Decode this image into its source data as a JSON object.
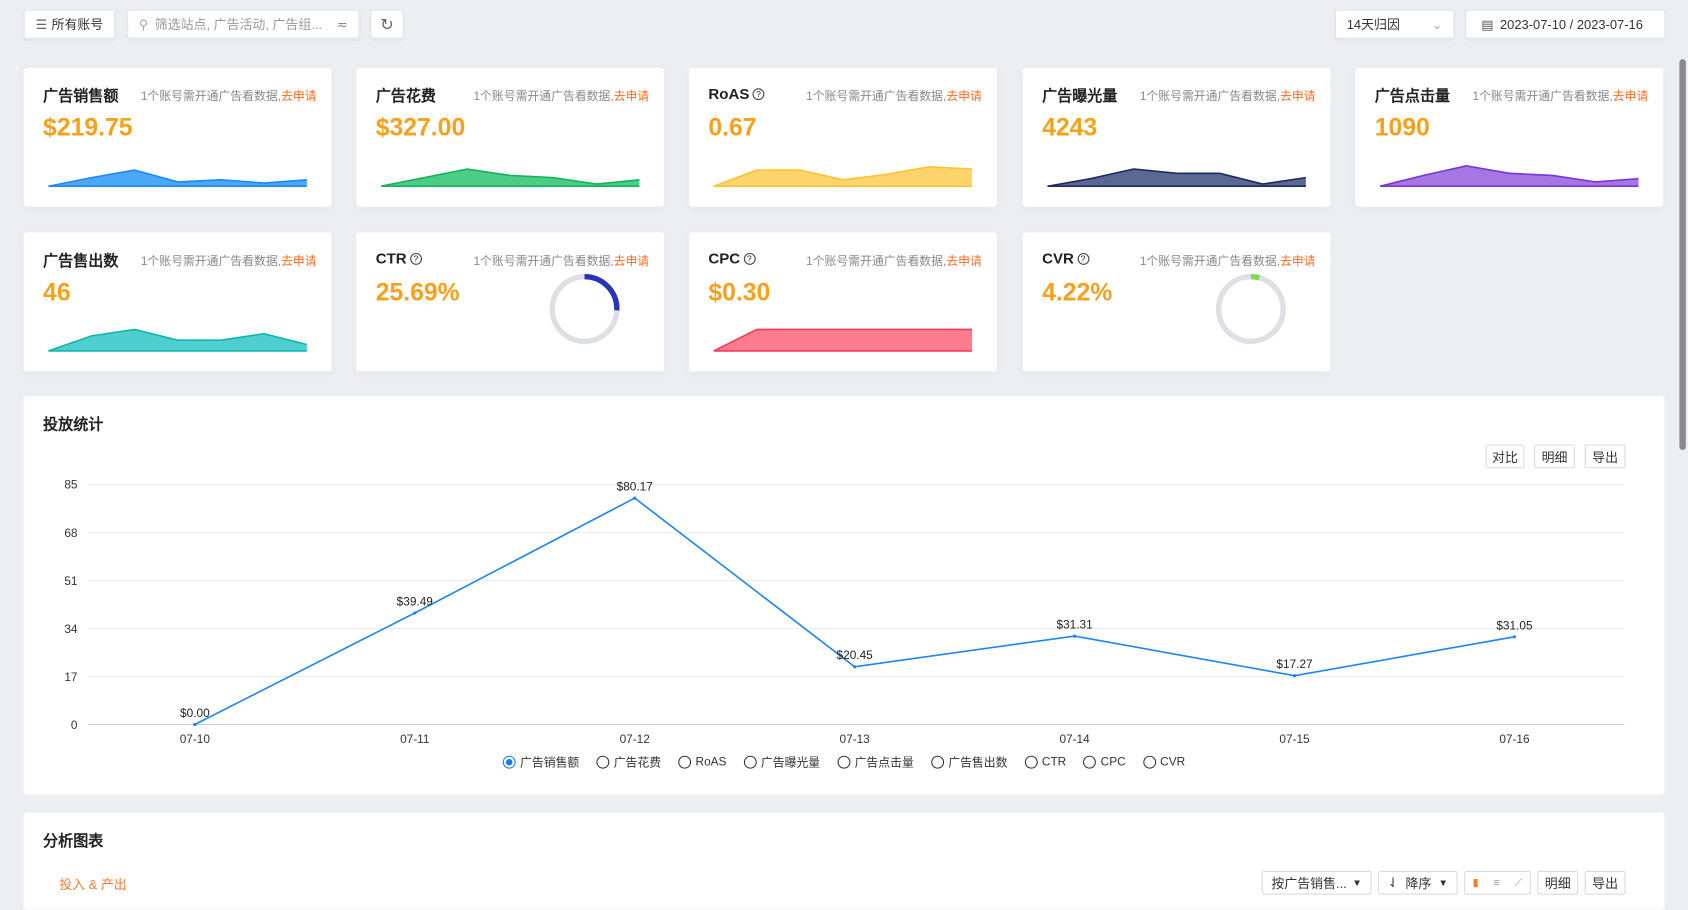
{
  "toolbar": {
    "accounts_label": "所有账号",
    "search_placeholder": "筛选站点, 广告活动, 广告组...",
    "attribution": "14天归因",
    "date_range": "2023-07-10 / 2023-07-16"
  },
  "notice": {
    "text": "1个账号需开通广告看数据,",
    "link": "去申请"
  },
  "cards": [
    {
      "title": "广告销售额",
      "value": "$219.75",
      "help": false,
      "color": "#1e88f5",
      "fill": "#4aa8f7",
      "spark": [
        0,
        8,
        15,
        4,
        6,
        3,
        6
      ]
    },
    {
      "title": "广告花费",
      "value": "$327.00",
      "help": false,
      "color": "#11b35b",
      "fill": "#4ccc85",
      "spark": [
        0,
        8,
        16,
        10,
        8,
        2,
        6
      ]
    },
    {
      "title": "RoAS",
      "value": "0.67",
      "help": true,
      "color": "#fcc233",
      "fill": "#fed56c",
      "spark": [
        0,
        15,
        15,
        6,
        11,
        18,
        16
      ]
    },
    {
      "title": "广告曝光量",
      "value": "4243",
      "help": false,
      "color": "#1c2b5e",
      "fill": "#5b6893",
      "spark": [
        0,
        7,
        16,
        12,
        12,
        2,
        8
      ]
    },
    {
      "title": "广告点击量",
      "value": "1090",
      "help": false,
      "color": "#7a35d9",
      "fill": "#a676e3",
      "spark": [
        0,
        10,
        19,
        12,
        10,
        4,
        7
      ]
    },
    {
      "title": "广告售出数",
      "value": "46",
      "help": false,
      "color": "#11b5b0",
      "fill": "#4ecfcd",
      "spark": [
        0,
        14,
        20,
        10,
        10,
        16,
        6
      ]
    },
    {
      "title": "CTR",
      "value": "25.69%",
      "help": true,
      "ring": 25.69,
      "color": "#2733b8"
    },
    {
      "title": "CPC",
      "value": "$0.30",
      "help": true,
      "color": "#f03c5a",
      "fill": "#fb7c8c",
      "spark": [
        0,
        20,
        20,
        20,
        20,
        20,
        20
      ]
    },
    {
      "title": "CVR",
      "value": "4.22%",
      "help": true,
      "ring": 4.22,
      "color": "#7ed957"
    }
  ],
  "stats": {
    "title": "投放统计",
    "compare": "对比",
    "detail": "明细",
    "export": "导出",
    "legend": [
      "广告销售额",
      "广告花费",
      "RoAS",
      "广告曝光量",
      "广告点击量",
      "广告售出数",
      "CTR",
      "CPC",
      "CVR"
    ],
    "selected": 0
  },
  "chart_data": {
    "type": "line",
    "title": "投放统计",
    "series": [
      {
        "name": "广告销售额",
        "values": [
          0,
          39.49,
          80.17,
          20.45,
          31.31,
          17.27,
          31.05
        ],
        "labels": [
          "$0.00",
          "$39.49",
          "$80.17",
          "$20.45",
          "$31.31",
          "$17.27",
          "$31.05"
        ]
      }
    ],
    "categories": [
      "07-10",
      "07-11",
      "07-12",
      "07-13",
      "07-14",
      "07-15",
      "07-16"
    ],
    "yticks": [
      0,
      17,
      34,
      51,
      68,
      85
    ],
    "ylim": [
      0,
      85
    ],
    "grid": true,
    "color": "#1a85f5"
  },
  "analysis": {
    "title": "分析图表",
    "tab": "投入 & 产出",
    "sort_by": "按广告销售...",
    "order": "降序",
    "detail": "明细",
    "export": "导出"
  }
}
